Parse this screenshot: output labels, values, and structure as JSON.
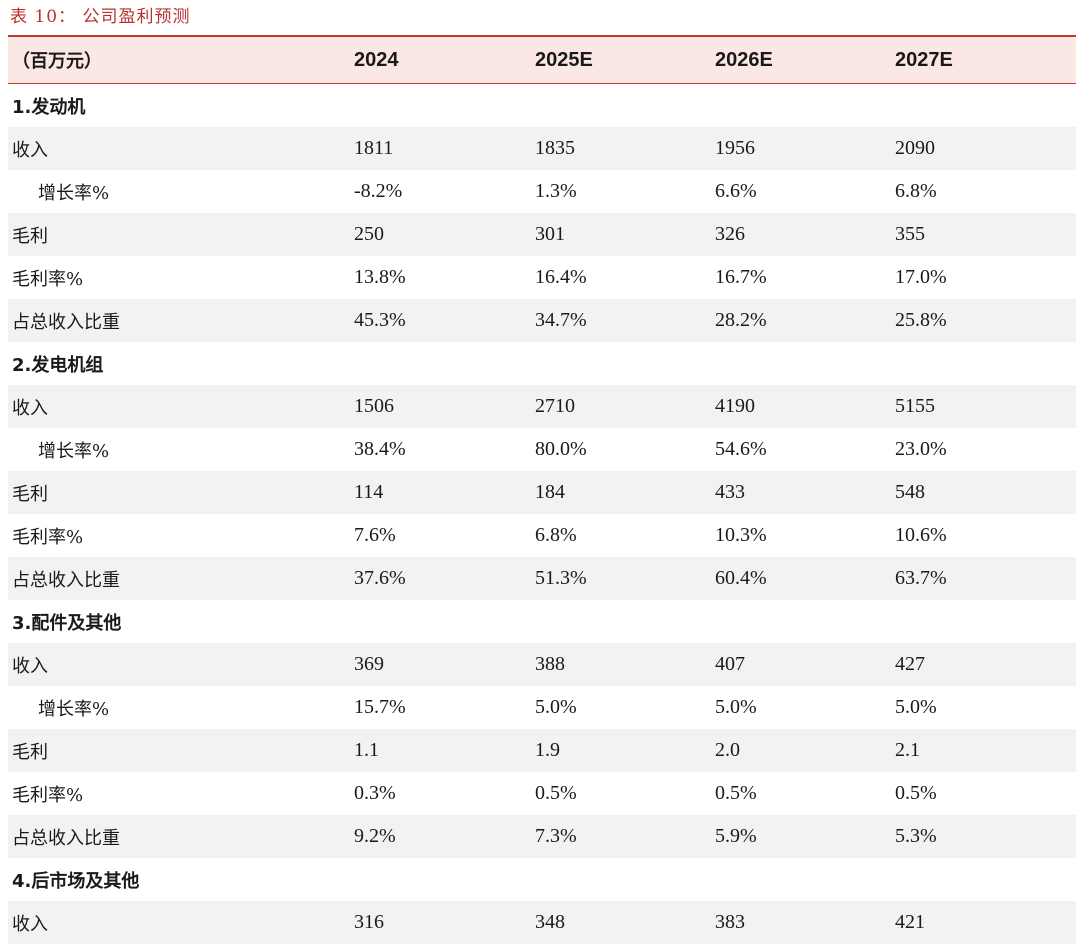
{
  "title": "表 10：  公司盈利预测",
  "header": {
    "unit": "（百万元）",
    "years": [
      "2024",
      "2025E",
      "2026E",
      "2027E"
    ]
  },
  "sections": [
    {
      "name": "1.发动机",
      "rows": [
        {
          "label": "收入",
          "values": [
            "1811",
            "1835",
            "1956",
            "2090"
          ]
        },
        {
          "label": "增长率%",
          "values": [
            "-8.2%",
            "1.3%",
            "6.6%",
            "6.8%"
          ]
        },
        {
          "label": "毛利",
          "values": [
            "250",
            "301",
            "326",
            "355"
          ]
        },
        {
          "label": "毛利率%",
          "values": [
            "13.8%",
            "16.4%",
            "16.7%",
            "17.0%"
          ]
        },
        {
          "label": "占总收入比重",
          "values": [
            "45.3%",
            "34.7%",
            "28.2%",
            "25.8%"
          ]
        }
      ]
    },
    {
      "name": "2.发电机组",
      "rows": [
        {
          "label": "收入",
          "values": [
            "1506",
            "2710",
            "4190",
            "5155"
          ]
        },
        {
          "label": "增长率%",
          "values": [
            "38.4%",
            "80.0%",
            "54.6%",
            "23.0%"
          ]
        },
        {
          "label": "毛利",
          "values": [
            "114",
            "184",
            "433",
            "548"
          ]
        },
        {
          "label": "毛利率%",
          "values": [
            "7.6%",
            "6.8%",
            "10.3%",
            "10.6%"
          ]
        },
        {
          "label": "占总收入比重",
          "values": [
            "37.6%",
            "51.3%",
            "60.4%",
            "63.7%"
          ]
        }
      ]
    },
    {
      "name": "3.配件及其他",
      "rows": [
        {
          "label": "收入",
          "values": [
            "369",
            "388",
            "407",
            "427"
          ]
        },
        {
          "label": "增长率%",
          "values": [
            "15.7%",
            "5.0%",
            "5.0%",
            "5.0%"
          ]
        },
        {
          "label": "毛利",
          "values": [
            "1.1",
            "1.9",
            "2.0",
            "2.1"
          ]
        },
        {
          "label": "毛利率%",
          "values": [
            "0.3%",
            "0.5%",
            "0.5%",
            "0.5%"
          ]
        },
        {
          "label": "占总收入比重",
          "values": [
            "9.2%",
            "7.3%",
            "5.9%",
            "5.3%"
          ]
        }
      ]
    },
    {
      "name": "4.后市场及其他",
      "rows": [
        {
          "label": "收入",
          "values": [
            "316",
            "348",
            "383",
            "421"
          ]
        }
      ]
    }
  ]
}
